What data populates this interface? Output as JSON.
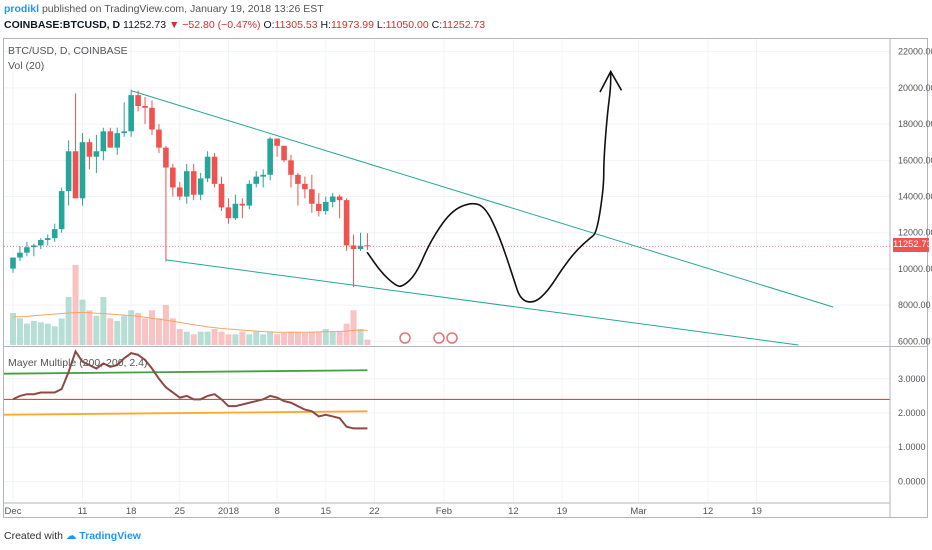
{
  "header": {
    "author": "prodikl",
    "published": "published on TradingView.com, January 19, 2018 13:26 EST",
    "symbol": "COINBASE:BTCUSD, D",
    "last": "11252.73",
    "change": "−52.80 (−0.47%)",
    "o_label": "O:",
    "o_value": "11305.53",
    "h_label": "H:",
    "h_value": "11973.99",
    "l_label": "L:",
    "l_value": "11050.00",
    "c_label": "C:",
    "c_value": "11252.73"
  },
  "pane": {
    "instrument": "BTC/USD, D, COINBASE",
    "volume_label": "Vol (20)",
    "indicator_label": "Mayer Multiple (200, 200, 2.4)",
    "last_price_tag": "11252.73"
  },
  "footer": {
    "created_with": "Created with",
    "brand": "TradingView"
  },
  "colors": {
    "up": "#26a69a",
    "down": "#ef5350",
    "trendline": "#26a69a",
    "mayer_line": "#8d4a43",
    "upper_band": "#43a047",
    "lower_band": "#ffa726",
    "threshold": "#d32f2f",
    "volume_ma": "#f5a46b",
    "price_line": "#ef5350"
  },
  "chart_data": {
    "type": "candlestick",
    "price_axis": {
      "ticks": [
        6000,
        8000,
        10000,
        12000,
        14000,
        16000,
        18000,
        20000,
        22000
      ],
      "tick_labels": [
        "6000.00",
        "8000.00",
        "10000.00",
        "12000.00",
        "14000.00",
        "16000.00",
        "18000.00",
        "20000.00",
        "22000.00"
      ],
      "ylim": [
        5800,
        22700
      ]
    },
    "time_axis": {
      "labels": [
        "Dec",
        "11",
        "18",
        "25",
        "2018",
        "8",
        "15",
        "22",
        "Feb",
        "12",
        "19",
        "Mar",
        "12",
        "19"
      ],
      "label_days": [
        0,
        10,
        17,
        24,
        31,
        38,
        45,
        52,
        62,
        72,
        79,
        90,
        100,
        107
      ]
    },
    "candles": [
      {
        "d": 0,
        "o": 10020,
        "h": 10580,
        "l": 9790,
        "c": 10630
      },
      {
        "d": 1,
        "o": 10630,
        "h": 11250,
        "l": 10430,
        "c": 10900
      },
      {
        "d": 2,
        "o": 10900,
        "h": 11500,
        "l": 10700,
        "c": 11200
      },
      {
        "d": 3,
        "o": 11200,
        "h": 11400,
        "l": 10700,
        "c": 11300
      },
      {
        "d": 4,
        "o": 11300,
        "h": 11700,
        "l": 11100,
        "c": 11600
      },
      {
        "d": 5,
        "o": 11600,
        "h": 11900,
        "l": 11300,
        "c": 11700
      },
      {
        "d": 6,
        "o": 11700,
        "h": 12500,
        "l": 11500,
        "c": 12200
      },
      {
        "d": 7,
        "o": 12200,
        "h": 14500,
        "l": 12000,
        "c": 14300
      },
      {
        "d": 8,
        "o": 14300,
        "h": 17100,
        "l": 13500,
        "c": 16500
      },
      {
        "d": 9,
        "o": 16500,
        "h": 19700,
        "l": 14000,
        "c": 13900
      },
      {
        "d": 10,
        "o": 13900,
        "h": 17500,
        "l": 13500,
        "c": 17000
      },
      {
        "d": 11,
        "o": 17000,
        "h": 17200,
        "l": 15500,
        "c": 16200
      },
      {
        "d": 12,
        "o": 16200,
        "h": 17400,
        "l": 15300,
        "c": 16500
      },
      {
        "d": 13,
        "o": 16500,
        "h": 17800,
        "l": 16000,
        "c": 17600
      },
      {
        "d": 14,
        "o": 17600,
        "h": 17800,
        "l": 16700,
        "c": 16700
      },
      {
        "d": 15,
        "o": 16700,
        "h": 17800,
        "l": 16300,
        "c": 17500
      },
      {
        "d": 16,
        "o": 17500,
        "h": 19200,
        "l": 17300,
        "c": 17600
      },
      {
        "d": 17,
        "o": 17600,
        "h": 19900,
        "l": 17300,
        "c": 19600
      },
      {
        "d": 18,
        "o": 19600,
        "h": 19850,
        "l": 18700,
        "c": 19000
      },
      {
        "d": 19,
        "o": 19000,
        "h": 19500,
        "l": 18000,
        "c": 18900
      },
      {
        "d": 20,
        "o": 18900,
        "h": 19300,
        "l": 17400,
        "c": 17700
      },
      {
        "d": 21,
        "o": 17700,
        "h": 18000,
        "l": 16400,
        "c": 16700
      },
      {
        "d": 22,
        "o": 16700,
        "h": 16800,
        "l": 10400,
        "c": 15600
      },
      {
        "d": 23,
        "o": 15600,
        "h": 15800,
        "l": 14000,
        "c": 14500
      },
      {
        "d": 24,
        "o": 14500,
        "h": 14800,
        "l": 13800,
        "c": 14000
      },
      {
        "d": 25,
        "o": 14000,
        "h": 15800,
        "l": 13600,
        "c": 15400
      },
      {
        "d": 26,
        "o": 15400,
        "h": 15800,
        "l": 13800,
        "c": 14100
      },
      {
        "d": 27,
        "o": 14100,
        "h": 15300,
        "l": 13800,
        "c": 15000
      },
      {
        "d": 28,
        "o": 15000,
        "h": 16500,
        "l": 14800,
        "c": 16200
      },
      {
        "d": 29,
        "o": 16200,
        "h": 16400,
        "l": 14500,
        "c": 14700
      },
      {
        "d": 30,
        "o": 14700,
        "h": 15100,
        "l": 13200,
        "c": 13400
      },
      {
        "d": 31,
        "o": 13400,
        "h": 13900,
        "l": 12500,
        "c": 12800
      },
      {
        "d": 32,
        "o": 12800,
        "h": 14100,
        "l": 12700,
        "c": 13600
      },
      {
        "d": 33,
        "o": 13600,
        "h": 13900,
        "l": 12800,
        "c": 13500
      },
      {
        "d": 34,
        "o": 13500,
        "h": 14900,
        "l": 13300,
        "c": 14700
      },
      {
        "d": 35,
        "o": 14700,
        "h": 15400,
        "l": 14500,
        "c": 15100
      },
      {
        "d": 36,
        "o": 15100,
        "h": 15500,
        "l": 14500,
        "c": 15200
      },
      {
        "d": 37,
        "o": 15200,
        "h": 17300,
        "l": 14900,
        "c": 17200
      },
      {
        "d": 38,
        "o": 17200,
        "h": 17200,
        "l": 16200,
        "c": 16800
      },
      {
        "d": 39,
        "o": 16800,
        "h": 16800,
        "l": 15900,
        "c": 16000
      },
      {
        "d": 40,
        "o": 16000,
        "h": 16300,
        "l": 14500,
        "c": 15200
      },
      {
        "d": 41,
        "o": 15200,
        "h": 15300,
        "l": 13500,
        "c": 14700
      },
      {
        "d": 42,
        "o": 14700,
        "h": 15100,
        "l": 13900,
        "c": 14400
      },
      {
        "d": 43,
        "o": 14400,
        "h": 15200,
        "l": 13100,
        "c": 13600
      },
      {
        "d": 44,
        "o": 13600,
        "h": 14200,
        "l": 12900,
        "c": 13200
      },
      {
        "d": 45,
        "o": 13200,
        "h": 14000,
        "l": 13000,
        "c": 13700
      },
      {
        "d": 46,
        "o": 13700,
        "h": 14200,
        "l": 13400,
        "c": 14000
      },
      {
        "d": 47,
        "o": 14000,
        "h": 14100,
        "l": 12800,
        "c": 13800
      },
      {
        "d": 48,
        "o": 13800,
        "h": 13900,
        "l": 11000,
        "c": 11300
      },
      {
        "d": 49,
        "o": 11300,
        "h": 11900,
        "l": 9000,
        "c": 11100
      },
      {
        "d": 50,
        "o": 11100,
        "h": 12000,
        "l": 11000,
        "c": 11280
      },
      {
        "d": 51,
        "o": 11305.53,
        "h": 11973.99,
        "l": 11050,
        "c": 11252.73
      }
    ],
    "volume": [
      1.2,
      1.0,
      0.8,
      0.9,
      0.85,
      0.8,
      0.7,
      1.0,
      1.8,
      3.0,
      1.7,
      1.3,
      1.1,
      1.8,
      1.0,
      0.9,
      1.1,
      1.3,
      1.2,
      1.0,
      1.3,
      1.0,
      1.5,
      1.0,
      0.6,
      0.5,
      0.4,
      0.5,
      0.5,
      0.6,
      0.5,
      0.4,
      0.4,
      0.5,
      0.4,
      0.5,
      0.4,
      0.5,
      0.4,
      0.45,
      0.5,
      0.5,
      0.45,
      0.5,
      0.5,
      0.6,
      0.5,
      0.5,
      0.8,
      1.3,
      0.6,
      0.2
    ],
    "volume_ma": [
      1.05,
      1.06,
      1.07,
      1.1,
      1.12,
      1.14,
      1.16,
      1.18,
      1.2,
      1.22,
      1.22,
      1.21,
      1.19,
      1.18,
      1.16,
      1.14,
      1.12,
      1.1,
      1.08,
      1.04,
      1.0,
      0.97,
      0.93,
      0.89,
      0.85,
      0.8,
      0.76,
      0.72,
      0.68,
      0.65,
      0.62,
      0.6,
      0.58,
      0.56,
      0.54,
      0.52,
      0.5,
      0.49,
      0.48,
      0.48,
      0.48,
      0.48,
      0.48,
      0.48,
      0.49,
      0.5,
      0.5,
      0.51,
      0.52,
      0.55,
      0.56,
      0.55
    ],
    "mayer_axis": {
      "ticks": [
        0,
        1,
        2,
        3
      ],
      "tick_labels": [
        "0.0000",
        "1.0000",
        "2.0000",
        "3.0000"
      ],
      "ylim": [
        -0.6,
        3.9
      ]
    },
    "mayer_multiple": [
      2.4,
      2.5,
      2.55,
      2.55,
      2.6,
      2.6,
      2.6,
      2.7,
      3.2,
      3.8,
      3.5,
      3.4,
      3.3,
      3.45,
      3.35,
      3.4,
      3.6,
      3.75,
      3.7,
      3.55,
      3.3,
      3.0,
      2.75,
      2.6,
      2.45,
      2.5,
      2.4,
      2.4,
      2.5,
      2.55,
      2.4,
      2.2,
      2.2,
      2.25,
      2.3,
      2.35,
      2.4,
      2.5,
      2.45,
      2.35,
      2.3,
      2.2,
      2.1,
      2.05,
      1.9,
      1.95,
      1.9,
      1.85,
      1.6,
      1.55,
      1.55,
      1.55
    ],
    "upper_band": {
      "from": 3.15,
      "to": 3.25
    },
    "lower_band": {
      "from": 1.95,
      "to": 2.05
    },
    "threshold": 2.4,
    "trendlines": [
      {
        "d1": 17,
        "p1": 19850,
        "d2": 118,
        "p2": 7900
      },
      {
        "d1": 22,
        "p1": 10500,
        "d2": 113,
        "p2": 5800
      }
    ],
    "drawing": [
      [
        51,
        10900
      ],
      [
        53,
        9800
      ],
      [
        55,
        9100
      ],
      [
        56,
        9000
      ],
      [
        58,
        9700
      ],
      [
        60,
        11500
      ],
      [
        63,
        13200
      ],
      [
        66,
        13700
      ],
      [
        68,
        13400
      ],
      [
        70,
        11800
      ],
      [
        72,
        9500
      ],
      [
        73,
        8300
      ],
      [
        75,
        8100
      ],
      [
        77,
        8800
      ],
      [
        79,
        10000
      ],
      [
        81,
        11000
      ],
      [
        83,
        11700
      ],
      [
        84,
        12000
      ],
      [
        85,
        14500
      ],
      [
        85,
        16000
      ],
      [
        85.5,
        18500
      ],
      [
        86,
        20000
      ],
      [
        86,
        20900
      ]
    ],
    "arrowhead": [
      [
        84.5,
        19800
      ],
      [
        86,
        20900
      ],
      [
        87.5,
        19900
      ]
    ]
  }
}
